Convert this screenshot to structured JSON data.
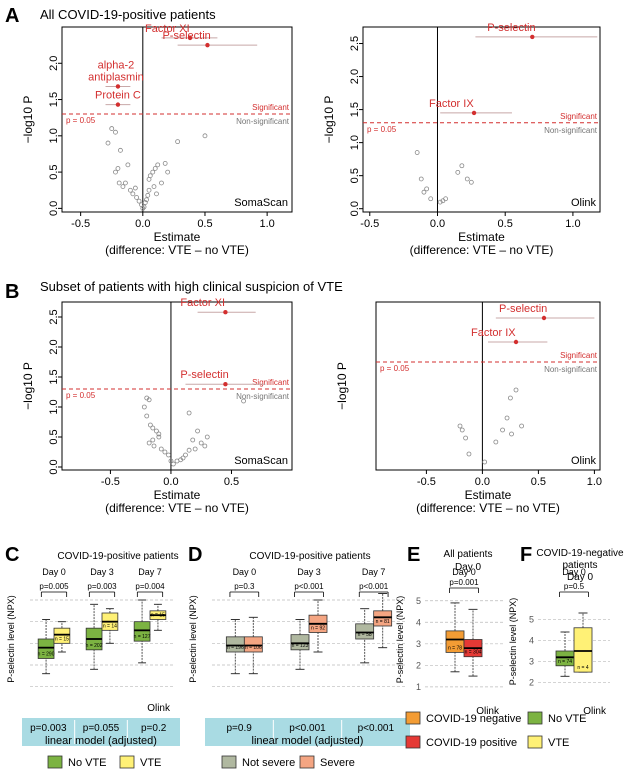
{
  "figure": {
    "panel_A_letter": "A",
    "panel_A_title": "All COVID-19-positive patients",
    "panel_B_letter": "B",
    "panel_B_title": "Subset of patients with high clinical suspicion of VTE",
    "volcano_xlabel_1": "Estimate",
    "volcano_xlabel_2": "(difference: VTE – no VTE)",
    "volcano_ylabel": "−log10 P",
    "significant_label": "Significant",
    "nonsignificant_label": "Non-significant",
    "threshold_label": "p = 0.05",
    "platform_soma": "SomaScan",
    "platform_olink": "Olink",
    "panel_C_letter": "C",
    "panel_C_title": "COVID-19-positive patients",
    "panel_D_letter": "D",
    "panel_D_title": "COVID-19-positive patients",
    "panel_E_letter": "E",
    "panel_E_title": "All patients",
    "panel_E_day": "Day 0",
    "panel_F_letter": "F",
    "panel_F_title_1": "COVID-19-negative",
    "panel_F_title_2": "patients",
    "panel_F_day": "Day 0",
    "box_ylabel": "P-selectin level (NPX)",
    "linear_model_label": "linear model (adjusted)",
    "olink_label": "Olink",
    "colors": {
      "red": "#d32f2f",
      "points": "#888888",
      "green": "#7cb342",
      "yellow": "#fff176",
      "grey": "#b0b8a0",
      "salmon": "#f4a582",
      "orange": "#f39c34",
      "bright_red": "#e53935",
      "lm_bg": "#a9dbe3"
    }
  },
  "chart_data": [
    {
      "id": "A-soma",
      "type": "scatter",
      "title": "All COVID-19-positive patients",
      "xlabel": "Estimate (difference: VTE – no VTE)",
      "ylabel": "−log10 P",
      "xlim": [
        -0.65,
        1.2
      ],
      "ylim": [
        -0.05,
        2.5
      ],
      "xticks": [
        "-0.5",
        "0.0",
        "0.5",
        "1.0"
      ],
      "yticks": [
        "0.0",
        "0.5",
        "1.0",
        "1.5",
        "2.0"
      ],
      "threshold": 1.3,
      "platform": "SomaScan",
      "significant": [
        {
          "label": "Factor XI",
          "x": 0.38,
          "y": 2.35,
          "lo": 0.15,
          "hi": 0.6
        },
        {
          "label": "P-selectin",
          "x": 0.52,
          "y": 2.25,
          "lo": 0.28,
          "hi": 0.92
        },
        {
          "label": "alpha-2 antiplasmin",
          "x": -0.2,
          "y": 1.68,
          "lo": -0.3,
          "hi": -0.1
        },
        {
          "label": "Protein C",
          "x": -0.2,
          "y": 1.43,
          "lo": -0.3,
          "hi": -0.1
        }
      ],
      "nonsignificant_x": [
        -0.25,
        -0.22,
        -0.28,
        -0.18,
        -0.2,
        -0.22,
        -0.19,
        -0.16,
        -0.14,
        -0.1,
        -0.08,
        -0.05,
        -0.03,
        -0.01,
        0.0,
        0.01,
        0.02,
        0.03,
        0.04,
        0.05,
        0.05,
        0.08,
        0.1,
        0.12,
        0.15,
        0.06,
        0.09,
        0.11,
        0.18,
        0.2,
        0.28,
        0.5,
        -0.12,
        -0.06
      ],
      "nonsignificant_y": [
        1.1,
        1.05,
        0.9,
        0.8,
        0.55,
        0.5,
        0.35,
        0.3,
        0.35,
        0.25,
        0.2,
        0.15,
        0.1,
        0.05,
        0.0,
        0.02,
        0.08,
        0.12,
        0.18,
        0.25,
        0.4,
        0.5,
        0.55,
        0.6,
        0.35,
        0.45,
        0.3,
        0.2,
        0.62,
        0.5,
        0.92,
        1.0,
        0.6,
        0.28
      ]
    },
    {
      "id": "A-olink",
      "type": "scatter",
      "xlim": [
        -0.55,
        1.2
      ],
      "ylim": [
        -0.05,
        2.75
      ],
      "xticks": [
        "-0.5",
        "0.0",
        "0.5",
        "1.0"
      ],
      "yticks": [
        "0.0",
        "0.5",
        "1.0",
        "1.5",
        "2.0",
        "2.5"
      ],
      "threshold": 1.3,
      "platform": "Olink",
      "significant": [
        {
          "label": "P-selectin",
          "x": 0.7,
          "y": 2.6,
          "lo": 0.28,
          "hi": 1.18
        },
        {
          "label": "Factor IX",
          "x": 0.27,
          "y": 1.45,
          "lo": 0.02,
          "hi": 0.55
        }
      ],
      "nonsignificant_x": [
        -0.15,
        -0.12,
        -0.1,
        -0.05,
        -0.08,
        0.02,
        0.04,
        0.06,
        0.15,
        0.18,
        0.22,
        0.25
      ],
      "nonsignificant_y": [
        0.85,
        0.45,
        0.25,
        0.15,
        0.3,
        0.1,
        0.12,
        0.15,
        0.55,
        0.65,
        0.45,
        0.4
      ]
    },
    {
      "id": "B-soma",
      "type": "scatter",
      "title": "Subset of patients with high clinical suspicion of VTE",
      "xlim": [
        -0.9,
        1.0
      ],
      "ylim": [
        -0.05,
        2.75
      ],
      "xticks": [
        "-0.5",
        "0.0",
        "0.5"
      ],
      "yticks": [
        "0.0",
        "0.5",
        "1.0",
        "1.5",
        "2.0",
        "2.5"
      ],
      "threshold": 1.3,
      "platform": "SomaScan",
      "significant": [
        {
          "label": "Factor XI",
          "x": 0.45,
          "y": 2.58,
          "lo": 0.22,
          "hi": 0.7
        },
        {
          "label": "P-selectin",
          "x": 0.45,
          "y": 1.38,
          "lo": 0.12,
          "hi": 0.78
        }
      ],
      "nonsignificant_x": [
        -0.2,
        -0.18,
        -0.22,
        -0.2,
        -0.17,
        -0.15,
        -0.12,
        -0.1,
        -0.15,
        -0.18,
        -0.14,
        -0.08,
        -0.05,
        -0.02,
        0.0,
        0.02,
        0.05,
        0.1,
        0.12,
        0.15,
        0.2,
        0.25,
        0.3,
        0.18,
        0.22,
        0.15,
        0.28,
        0.08,
        0.6,
        -0.1
      ],
      "nonsignificant_y": [
        1.15,
        1.12,
        1.0,
        0.85,
        0.7,
        0.65,
        0.6,
        0.55,
        0.45,
        0.4,
        0.35,
        0.3,
        0.25,
        0.2,
        0.1,
        0.05,
        0.1,
        0.15,
        0.2,
        0.28,
        0.3,
        0.4,
        0.5,
        0.45,
        0.6,
        0.9,
        0.35,
        0.12,
        1.1,
        0.5
      ]
    },
    {
      "id": "B-olink",
      "type": "scatter",
      "xlim": [
        -0.95,
        1.05
      ],
      "ylim": [
        -0.05,
        2.05
      ],
      "xticks": [
        "-0.5",
        "0.0",
        "0.5",
        "1.0"
      ],
      "yticks": [],
      "threshold": 1.3,
      "platform": "Olink",
      "significant": [
        {
          "label": "P-selectin",
          "x": 0.55,
          "y": 1.85,
          "lo": 0.12,
          "hi": 1.0
        },
        {
          "label": "Factor IX",
          "x": 0.3,
          "y": 1.55,
          "lo": 0.05,
          "hi": 0.58
        }
      ],
      "nonsignificant_x": [
        -0.2,
        -0.18,
        -0.15,
        -0.12,
        0.02,
        0.12,
        0.18,
        0.22,
        0.25,
        0.3,
        0.26,
        0.35
      ],
      "nonsignificant_y": [
        0.5,
        0.45,
        0.35,
        0.15,
        0.05,
        0.3,
        0.45,
        0.6,
        0.85,
        0.95,
        0.4,
        0.5
      ]
    },
    {
      "id": "C",
      "type": "box",
      "title": "COVID-19-positive patients",
      "ylabel": "P-selectin level (NPX)",
      "groups": [
        "Day 0",
        "Day 3",
        "Day 7"
      ],
      "pvalues": [
        "p=0.005",
        "p=0.003",
        "p=0.004"
      ],
      "lm_pvalues": [
        "p=0.003",
        "p=0.055",
        "p=0.2"
      ],
      "ylim": [
        0.8,
        5.6
      ],
      "series": [
        {
          "name": "No VTE",
          "color": "#7cb342",
          "n": [
            "n = 290",
            "n = 202",
            "n = 127"
          ],
          "boxes": [
            [
              1.6,
              2.3,
              2.8,
              3.2,
              4.1
            ],
            [
              1.8,
              2.7,
              3.2,
              3.7,
              4.8
            ],
            [
              2.1,
              3.1,
              3.6,
              4.0,
              5.0
            ]
          ]
        },
        {
          "name": "VTE",
          "color": "#fff176",
          "n": [
            "n = 15",
            "n = 14",
            "n = 15"
          ],
          "boxes": [
            [
              2.6,
              3.0,
              3.4,
              3.7,
              4.0
            ],
            [
              3.0,
              3.6,
              4.0,
              4.4,
              4.6
            ],
            [
              3.6,
              4.1,
              4.3,
              4.5,
              4.8
            ]
          ]
        }
      ],
      "platform": "Olink"
    },
    {
      "id": "D",
      "type": "box",
      "title": "COVID-19-positive patients",
      "groups": [
        "Day 0",
        "Day 3",
        "Day 7"
      ],
      "pvalues": [
        "p=0.3",
        "p<0.001",
        "p<0.001"
      ],
      "lm_pvalues": [
        "p=0.9",
        "p<0.001",
        "p<0.001"
      ],
      "ylim": [
        0.8,
        5.6
      ],
      "series": [
        {
          "name": "Not severe",
          "color": "#b0b8a0",
          "n": [
            "n = 196",
            "n = 123",
            "n = 58"
          ],
          "boxes": [
            [
              1.6,
              2.6,
              2.9,
              3.3,
              4.1
            ],
            [
              1.8,
              2.7,
              3.0,
              3.4,
              4.1
            ],
            [
              2.1,
              3.2,
              3.5,
              3.9,
              4.6
            ]
          ]
        },
        {
          "name": "Severe",
          "color": "#f4a582",
          "n": [
            "n = 106",
            "n = 92",
            "n = 81"
          ],
          "boxes": [
            [
              1.6,
              2.6,
              2.9,
              3.3,
              4.2
            ],
            [
              2.6,
              3.5,
              3.9,
              4.3,
              5.0
            ],
            [
              2.8,
              3.8,
              4.2,
              4.5,
              5.3
            ]
          ]
        }
      ]
    },
    {
      "id": "E",
      "type": "box",
      "title": "All patients",
      "groups": [
        "Day 0"
      ],
      "pvalues": [
        "p=0.001"
      ],
      "ylim": [
        0.9,
        5.5
      ],
      "yticks": [
        "1",
        "2",
        "3",
        "4",
        "5"
      ],
      "series": [
        {
          "name": "COVID-19 negative",
          "color": "#f39c34",
          "n": [
            "n = 78"
          ],
          "boxes": [
            [
              1.7,
              2.6,
              3.2,
              3.6,
              4.9
            ]
          ]
        },
        {
          "name": "COVID-19 positive",
          "color": "#e53935",
          "n": [
            "n = 304"
          ],
          "boxes": [
            [
              1.5,
              2.4,
              2.8,
              3.2,
              4.6
            ]
          ]
        }
      ],
      "platform": "Olink"
    },
    {
      "id": "F",
      "type": "box",
      "title": "COVID-19-negative patients",
      "groups": [
        "Day 0"
      ],
      "pvalues": [
        "p=0.5"
      ],
      "ylim": [
        1.7,
        6.2
      ],
      "yticks": [
        "2",
        "3",
        "4",
        "5"
      ],
      "series": [
        {
          "name": "No VTE",
          "color": "#7cb342",
          "n": [
            "n = 74"
          ],
          "boxes": [
            [
              2.3,
              2.8,
              3.2,
              3.5,
              4.4
            ]
          ]
        },
        {
          "name": "VTE",
          "color": "#fff176",
          "n": [
            "n = 4"
          ],
          "boxes": [
            [
              2.5,
              2.5,
              3.5,
              4.6,
              5.3
            ]
          ]
        }
      ],
      "platform": "Olink"
    }
  ]
}
